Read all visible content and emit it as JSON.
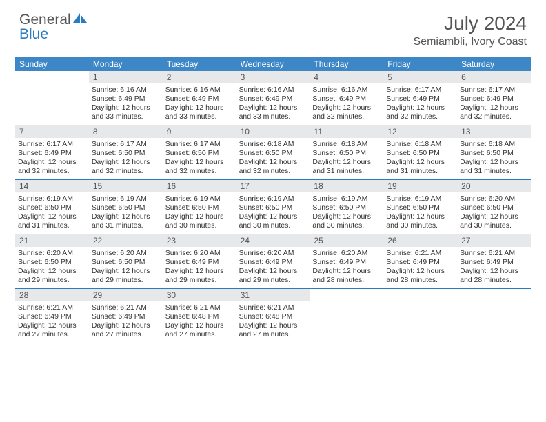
{
  "logo": {
    "text1": "General",
    "text2": "Blue"
  },
  "title": "July 2024",
  "location": "Semiambli, Ivory Coast",
  "colors": {
    "accent": "#3d87c7",
    "rule": "#2a7bbf",
    "daynum_bg": "#e7e8ea",
    "text": "#333333",
    "muted": "#555555",
    "bg": "#ffffff"
  },
  "daysOfWeek": [
    "Sunday",
    "Monday",
    "Tuesday",
    "Wednesday",
    "Thursday",
    "Friday",
    "Saturday"
  ],
  "startOffset": 1,
  "daysInMonth": 31,
  "entries": {
    "1": {
      "sunrise": "6:16 AM",
      "sunset": "6:49 PM",
      "daylight": "12 hours and 33 minutes."
    },
    "2": {
      "sunrise": "6:16 AM",
      "sunset": "6:49 PM",
      "daylight": "12 hours and 33 minutes."
    },
    "3": {
      "sunrise": "6:16 AM",
      "sunset": "6:49 PM",
      "daylight": "12 hours and 33 minutes."
    },
    "4": {
      "sunrise": "6:16 AM",
      "sunset": "6:49 PM",
      "daylight": "12 hours and 32 minutes."
    },
    "5": {
      "sunrise": "6:17 AM",
      "sunset": "6:49 PM",
      "daylight": "12 hours and 32 minutes."
    },
    "6": {
      "sunrise": "6:17 AM",
      "sunset": "6:49 PM",
      "daylight": "12 hours and 32 minutes."
    },
    "7": {
      "sunrise": "6:17 AM",
      "sunset": "6:49 PM",
      "daylight": "12 hours and 32 minutes."
    },
    "8": {
      "sunrise": "6:17 AM",
      "sunset": "6:50 PM",
      "daylight": "12 hours and 32 minutes."
    },
    "9": {
      "sunrise": "6:17 AM",
      "sunset": "6:50 PM",
      "daylight": "12 hours and 32 minutes."
    },
    "10": {
      "sunrise": "6:18 AM",
      "sunset": "6:50 PM",
      "daylight": "12 hours and 32 minutes."
    },
    "11": {
      "sunrise": "6:18 AM",
      "sunset": "6:50 PM",
      "daylight": "12 hours and 31 minutes."
    },
    "12": {
      "sunrise": "6:18 AM",
      "sunset": "6:50 PM",
      "daylight": "12 hours and 31 minutes."
    },
    "13": {
      "sunrise": "6:18 AM",
      "sunset": "6:50 PM",
      "daylight": "12 hours and 31 minutes."
    },
    "14": {
      "sunrise": "6:19 AM",
      "sunset": "6:50 PM",
      "daylight": "12 hours and 31 minutes."
    },
    "15": {
      "sunrise": "6:19 AM",
      "sunset": "6:50 PM",
      "daylight": "12 hours and 31 minutes."
    },
    "16": {
      "sunrise": "6:19 AM",
      "sunset": "6:50 PM",
      "daylight": "12 hours and 30 minutes."
    },
    "17": {
      "sunrise": "6:19 AM",
      "sunset": "6:50 PM",
      "daylight": "12 hours and 30 minutes."
    },
    "18": {
      "sunrise": "6:19 AM",
      "sunset": "6:50 PM",
      "daylight": "12 hours and 30 minutes."
    },
    "19": {
      "sunrise": "6:19 AM",
      "sunset": "6:50 PM",
      "daylight": "12 hours and 30 minutes."
    },
    "20": {
      "sunrise": "6:20 AM",
      "sunset": "6:50 PM",
      "daylight": "12 hours and 30 minutes."
    },
    "21": {
      "sunrise": "6:20 AM",
      "sunset": "6:50 PM",
      "daylight": "12 hours and 29 minutes."
    },
    "22": {
      "sunrise": "6:20 AM",
      "sunset": "6:50 PM",
      "daylight": "12 hours and 29 minutes."
    },
    "23": {
      "sunrise": "6:20 AM",
      "sunset": "6:49 PM",
      "daylight": "12 hours and 29 minutes."
    },
    "24": {
      "sunrise": "6:20 AM",
      "sunset": "6:49 PM",
      "daylight": "12 hours and 29 minutes."
    },
    "25": {
      "sunrise": "6:20 AM",
      "sunset": "6:49 PM",
      "daylight": "12 hours and 28 minutes."
    },
    "26": {
      "sunrise": "6:21 AM",
      "sunset": "6:49 PM",
      "daylight": "12 hours and 28 minutes."
    },
    "27": {
      "sunrise": "6:21 AM",
      "sunset": "6:49 PM",
      "daylight": "12 hours and 28 minutes."
    },
    "28": {
      "sunrise": "6:21 AM",
      "sunset": "6:49 PM",
      "daylight": "12 hours and 27 minutes."
    },
    "29": {
      "sunrise": "6:21 AM",
      "sunset": "6:49 PM",
      "daylight": "12 hours and 27 minutes."
    },
    "30": {
      "sunrise": "6:21 AM",
      "sunset": "6:48 PM",
      "daylight": "12 hours and 27 minutes."
    },
    "31": {
      "sunrise": "6:21 AM",
      "sunset": "6:48 PM",
      "daylight": "12 hours and 27 minutes."
    }
  },
  "labels": {
    "sunrise": "Sunrise:",
    "sunset": "Sunset:",
    "daylight": "Daylight:"
  }
}
